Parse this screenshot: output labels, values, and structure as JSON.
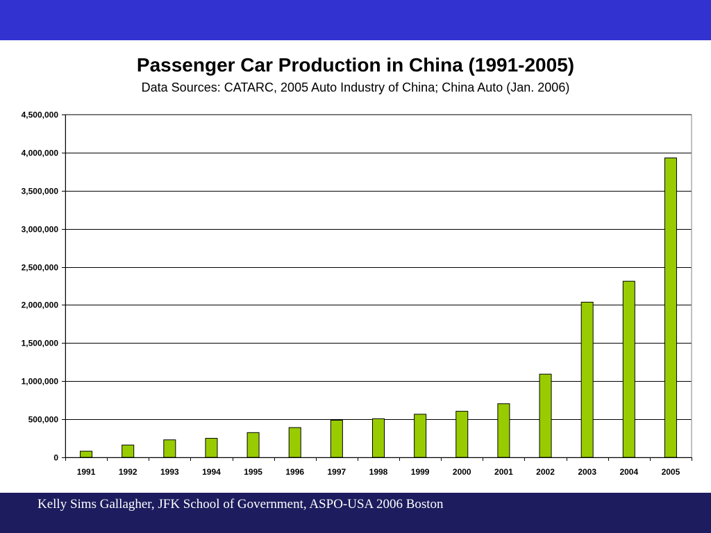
{
  "slide": {
    "footer": "Kelly Sims Gallagher, JFK School of Government, ASPO-USA 2006 Boston",
    "colors": {
      "top_band": "#3232d0",
      "footer_band": "#1c1c5e",
      "panel": "#ffffff"
    }
  },
  "chart_data": {
    "type": "bar",
    "title": "Passenger Car Production in China (1991-2005)",
    "subtitle": "Data Sources: CATARC, 2005 Auto Industry of China; China Auto (Jan. 2006)",
    "xlabel": "",
    "ylabel": "",
    "categories": [
      "1991",
      "1992",
      "1993",
      "1994",
      "1995",
      "1996",
      "1997",
      "1998",
      "1999",
      "2000",
      "2001",
      "2002",
      "2003",
      "2004",
      "2005"
    ],
    "values": [
      81000,
      162000,
      230000,
      250000,
      325000,
      391000,
      488000,
      507000,
      566000,
      605000,
      704000,
      1092000,
      2037000,
      2312000,
      3930000
    ],
    "ylim": [
      0,
      4500000
    ],
    "yticks": [
      0,
      500000,
      1000000,
      1500000,
      2000000,
      2500000,
      3000000,
      3500000,
      4000000,
      4500000
    ],
    "ytick_labels": [
      "0",
      "500,000",
      "1,000,000",
      "1,500,000",
      "2,000,000",
      "2,500,000",
      "3,000,000",
      "3,500,000",
      "4,000,000",
      "4,500,000"
    ],
    "grid": true,
    "legend": "none",
    "bar_color": "#99cc00"
  }
}
